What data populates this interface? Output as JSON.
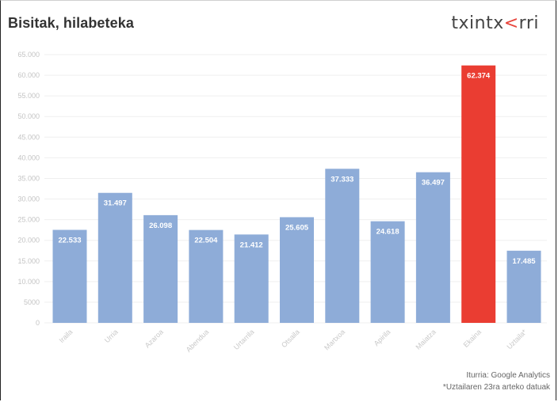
{
  "brand": {
    "logo_text_a": "txintx",
    "logo_text_b": "rri",
    "logo_accent": "<",
    "accent_color": "#e8453c"
  },
  "notes": {
    "source": "Iturria: Google Analytics",
    "footnote": "*Uztailaren 23ra arteko datuak"
  },
  "chart_data": {
    "type": "bar",
    "title": "Bisitak, hilabeteka",
    "xlabel": "",
    "ylabel": "",
    "ylim": [
      0,
      65000
    ],
    "yticks": [
      0,
      5000,
      10000,
      15000,
      20000,
      25000,
      30000,
      35000,
      40000,
      45000,
      50000,
      55000,
      60000,
      65000
    ],
    "ytick_labels": [
      "0",
      "5000",
      "10.000",
      "15.000",
      "20.000",
      "25.000",
      "30.000",
      "35.000",
      "40.000",
      "45.000",
      "50.000",
      "55.000",
      "60.000",
      "65.000"
    ],
    "grid": true,
    "categories": [
      "Iraila",
      "Urria",
      "Azaroa",
      "Abendua",
      "Urtarrila",
      "Otsaila",
      "Martxoa",
      "Apirila",
      "Maiatza",
      "Ekaina",
      "Uztaila*"
    ],
    "values": [
      22533,
      31497,
      26098,
      22504,
      21412,
      25605,
      37333,
      24618,
      36497,
      62374,
      17485
    ],
    "value_labels": [
      "22.533",
      "31.497",
      "26.098",
      "22.504",
      "21.412",
      "25.605",
      "37.333",
      "24.618",
      "36.497",
      "62.374",
      "17.485"
    ],
    "bar_color": "#8eacd8",
    "highlight_index": 9,
    "highlight_color": "#ea3d32"
  }
}
